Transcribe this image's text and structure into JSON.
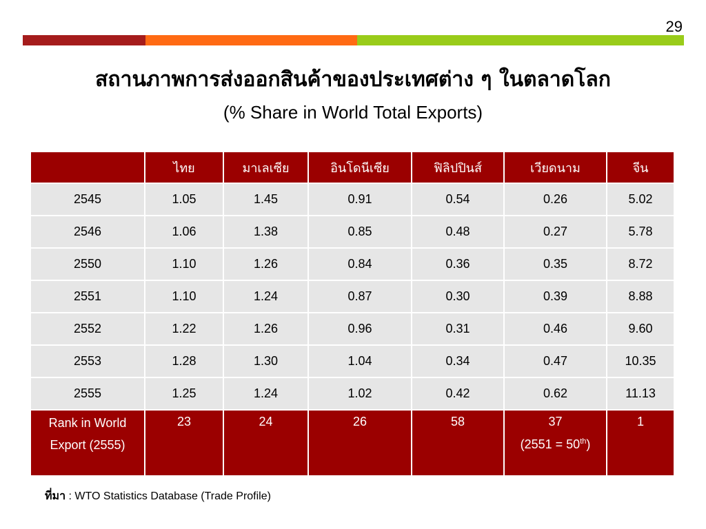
{
  "page_number": "29",
  "title": "สถานภาพการส่งออกสินค้าของประเทศต่าง ๆ ในตลาดโลก",
  "subtitle": "(% Share in World Total Exports)",
  "table": {
    "headers": [
      "",
      "ไทย",
      "มาเลเซีย",
      "อินโดนีเซีย",
      "ฟิลิปปินส์",
      "เวียดนาม",
      "จีน"
    ],
    "rows": [
      [
        "2545",
        "1.05",
        "1.45",
        "0.91",
        "0.54",
        "0.26",
        "5.02"
      ],
      [
        "2546",
        "1.06",
        "1.38",
        "0.85",
        "0.48",
        "0.27",
        "5.78"
      ],
      [
        "2550",
        "1.10",
        "1.26",
        "0.84",
        "0.36",
        "0.35",
        "8.72"
      ],
      [
        "2551",
        "1.10",
        "1.24",
        "0.87",
        "0.30",
        "0.39",
        "8.88"
      ],
      [
        "2552",
        "1.22",
        "1.26",
        "0.96",
        "0.31",
        "0.46",
        "9.60"
      ],
      [
        "2553",
        "1.28",
        "1.30",
        "1.04",
        "0.34",
        "0.47",
        "10.35"
      ],
      [
        "2555",
        "1.25",
        "1.24",
        "1.02",
        "0.42",
        "0.62",
        "11.13"
      ]
    ],
    "rank_row": {
      "label_line1": "Rank in World",
      "label_line2": "Export (2555)",
      "values": [
        "23",
        "24",
        "26",
        "58",
        "37",
        "1"
      ],
      "vietnam_note_prefix": "(2551 = 50",
      "vietnam_note_sup": "th",
      "vietnam_note_suffix": ")"
    }
  },
  "source": {
    "label": "ที่มา",
    "text": " : WTO Statistics Database (Trade Profile)"
  },
  "colors": {
    "header_red": "#9b0000",
    "row_gray": "#e6e6e6",
    "bar_dark_red": "#a51c1c",
    "bar_orange": "#ff6a13",
    "bar_green": "#99cc1a"
  }
}
